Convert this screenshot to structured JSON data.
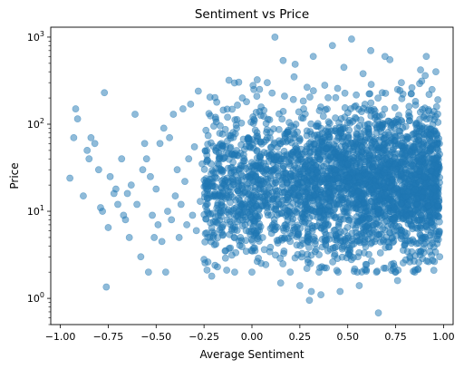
{
  "chart_data": {
    "type": "scatter",
    "title": "Sentiment vs Price",
    "xlabel": "Average Sentiment",
    "ylabel": "Price",
    "xlim": [
      -1.05,
      1.05
    ],
    "ylim": [
      0.5,
      1300
    ],
    "y_scale": "log",
    "grid": false,
    "legend": "none",
    "x_ticks": [
      -1.0,
      -0.75,
      -0.5,
      -0.25,
      0.0,
      0.25,
      0.5,
      0.75,
      1.0
    ],
    "x_tick_labels": [
      "−1.00",
      "−0.75",
      "−0.50",
      "−0.25",
      "0.00",
      "0.25",
      "0.50",
      "0.75",
      "1.00"
    ],
    "y_ticks": [
      1,
      10,
      100,
      1000
    ],
    "y_tick_labels": [
      {
        "base": "10",
        "exp": "0"
      },
      {
        "base": "10",
        "exp": "1"
      },
      {
        "base": "10",
        "exp": "2"
      },
      {
        "base": "10",
        "exp": "3"
      }
    ],
    "marker_color": "#1f77b4",
    "marker_alpha": 0.5,
    "series": [
      {
        "points": [
          [
            -0.95,
            24
          ],
          [
            -0.93,
            70
          ],
          [
            -0.92,
            150
          ],
          [
            -0.91,
            115
          ],
          [
            -0.88,
            15
          ],
          [
            -0.86,
            50
          ],
          [
            -0.85,
            40
          ],
          [
            -0.84,
            70
          ],
          [
            -0.82,
            60
          ],
          [
            -0.8,
            30
          ],
          [
            -0.79,
            11
          ],
          [
            -0.78,
            10
          ],
          [
            -0.77,
            230
          ],
          [
            -0.76,
            1.35
          ],
          [
            -0.75,
            6.5
          ],
          [
            -0.74,
            25
          ],
          [
            -0.72,
            16
          ],
          [
            -0.71,
            18
          ],
          [
            -0.7,
            12
          ],
          [
            -0.68,
            40
          ],
          [
            -0.67,
            9
          ],
          [
            -0.66,
            8
          ],
          [
            -0.65,
            16
          ],
          [
            -0.64,
            5
          ],
          [
            -0.63,
            20
          ],
          [
            -0.61,
            130
          ],
          [
            -0.6,
            12
          ],
          [
            -0.58,
            3
          ],
          [
            -0.57,
            30
          ],
          [
            -0.56,
            60
          ],
          [
            -0.55,
            40
          ],
          [
            -0.54,
            2
          ],
          [
            -0.53,
            25
          ],
          [
            -0.52,
            9
          ],
          [
            -0.51,
            5
          ],
          [
            -0.5,
            18
          ],
          [
            -0.49,
            7
          ],
          [
            -0.48,
            60
          ],
          [
            -0.47,
            4.5
          ],
          [
            -0.46,
            90
          ],
          [
            -0.45,
            2
          ],
          [
            -0.44,
            10
          ],
          [
            -0.43,
            70
          ],
          [
            -0.42,
            8
          ],
          [
            -0.41,
            130
          ],
          [
            -0.4,
            15
          ],
          [
            -0.39,
            30
          ],
          [
            -0.38,
            5
          ],
          [
            -0.37,
            12
          ],
          [
            -0.36,
            150
          ],
          [
            -0.35,
            22
          ],
          [
            -0.34,
            7
          ],
          [
            -0.33,
            40
          ],
          [
            -0.32,
            170
          ],
          [
            -0.31,
            9
          ],
          [
            -0.3,
            55
          ],
          [
            -0.29,
            6
          ],
          [
            -0.28,
            240
          ],
          [
            -0.27,
            13
          ],
          [
            -0.26,
            35
          ],
          [
            -0.25,
            2.8
          ],
          [
            -0.24,
            85
          ],
          [
            -0.23,
            18
          ],
          [
            -0.22,
            5
          ],
          [
            -0.21,
            1.8
          ],
          [
            -0.2,
            28
          ],
          [
            -0.19,
            120
          ],
          [
            -0.18,
            2.3
          ],
          [
            -0.17,
            15
          ],
          [
            -0.16,
            60
          ],
          [
            -0.15,
            7
          ],
          [
            -0.14,
            3.5
          ],
          [
            -0.13,
            24
          ],
          [
            -0.12,
            320
          ],
          [
            -0.11,
            10
          ],
          [
            -0.1,
            45
          ],
          [
            -0.09,
            2
          ],
          [
            -0.08,
            90
          ],
          [
            -0.07,
            14
          ],
          [
            -0.06,
            5
          ],
          [
            -0.05,
            200
          ],
          [
            -0.04,
            33
          ],
          [
            -0.03,
            8
          ],
          [
            -0.02,
            70
          ],
          [
            -0.01,
            12
          ],
          [
            0.0,
            2
          ],
          [
            0.01,
            250
          ],
          [
            0.02,
            25
          ],
          [
            0.03,
            6
          ],
          [
            0.04,
            140
          ],
          [
            0.06,
            18
          ],
          [
            0.08,
            300
          ],
          [
            0.1,
            9
          ],
          [
            0.12,
            1000
          ],
          [
            0.14,
            45
          ],
          [
            0.15,
            1.5
          ],
          [
            0.17,
            210
          ],
          [
            0.19,
            16
          ],
          [
            0.2,
            2
          ],
          [
            0.22,
            350
          ],
          [
            0.24,
            22
          ],
          [
            0.25,
            1.4
          ],
          [
            0.27,
            150
          ],
          [
            0.29,
            11
          ],
          [
            0.3,
            0.95
          ],
          [
            0.31,
            1.2
          ],
          [
            0.32,
            600
          ],
          [
            0.34,
            28
          ],
          [
            0.35,
            2
          ],
          [
            0.36,
            1.1
          ],
          [
            0.38,
            280
          ],
          [
            0.4,
            14
          ],
          [
            0.42,
            800
          ],
          [
            0.44,
            35
          ],
          [
            0.45,
            2
          ],
          [
            0.46,
            1.2
          ],
          [
            0.48,
            450
          ],
          [
            0.5,
            19
          ],
          [
            0.52,
            950
          ],
          [
            0.54,
            60
          ],
          [
            0.55,
            2
          ],
          [
            0.56,
            1.4
          ],
          [
            0.58,
            380
          ],
          [
            0.6,
            26
          ],
          [
            0.62,
            700
          ],
          [
            0.64,
            13
          ],
          [
            0.65,
            2
          ],
          [
            0.66,
            0.68
          ],
          [
            0.68,
            230
          ],
          [
            0.7,
            40
          ],
          [
            0.72,
            550
          ],
          [
            0.74,
            16
          ],
          [
            0.75,
            2
          ],
          [
            0.76,
            1.6
          ],
          [
            0.78,
            300
          ],
          [
            0.8,
            22
          ],
          [
            0.82,
            160
          ],
          [
            0.84,
            55
          ],
          [
            0.85,
            2
          ],
          [
            0.86,
            14
          ],
          [
            0.88,
            420
          ],
          [
            0.9,
            30
          ],
          [
            0.91,
            600
          ],
          [
            0.92,
            9
          ],
          [
            0.93,
            4
          ],
          [
            0.94,
            250
          ],
          [
            0.95,
            18
          ],
          [
            0.96,
            400
          ],
          [
            0.97,
            12
          ],
          [
            0.98,
            3
          ]
        ],
        "dense_region": {
          "note_points": [
            [
              0.1,
              40
            ],
            [
              0.2,
              25
            ],
            [
              0.3,
              60
            ],
            [
              0.4,
              20
            ],
            [
              0.5,
              35
            ],
            [
              0.6,
              50
            ],
            [
              0.7,
              30
            ],
            [
              0.8,
              45
            ],
            [
              0.9,
              25
            ],
            [
              0.15,
              12
            ],
            [
              0.25,
              15
            ],
            [
              0.35,
              10
            ],
            [
              0.45,
              70
            ],
            [
              0.55,
              90
            ],
            [
              0.65,
              80
            ],
            [
              0.75,
              65
            ],
            [
              0.85,
              55
            ],
            [
              0.95,
              40
            ],
            [
              0.05,
              20
            ],
            [
              0.0,
              10
            ]
          ]
        }
      }
    ]
  }
}
